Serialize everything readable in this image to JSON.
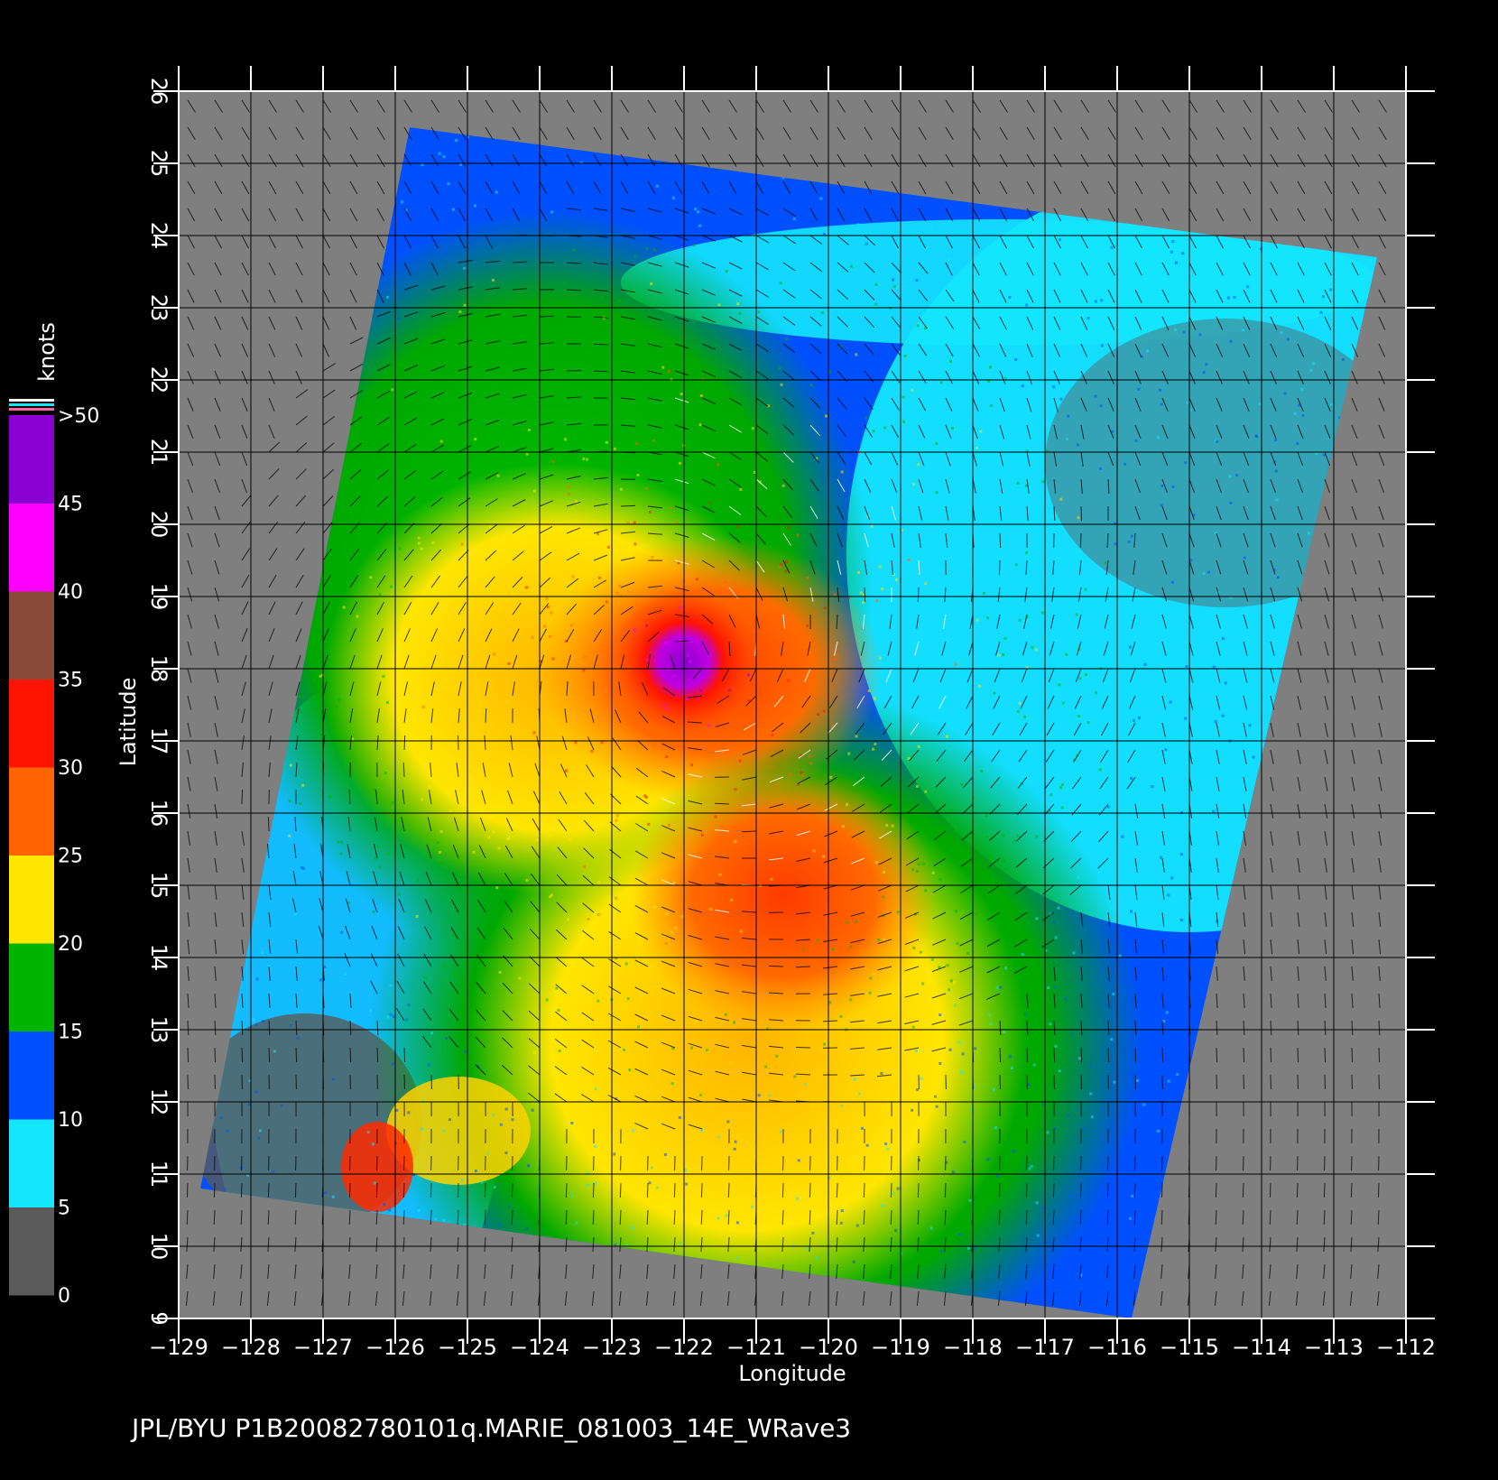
{
  "caption": "JPL/BYU  P1B20082780101q.MARIE_081003_14E_WRave3",
  "colors": {
    "background": "#000000",
    "land_or_nodata": "#7f7f7f",
    "grid": "#000000",
    "frame": "#ffffff"
  },
  "map": {
    "type": "satellite-swath-heatmap",
    "xlabel": "Longitude",
    "ylabel": "Latitude",
    "xlim": [
      -129,
      -112
    ],
    "ylim": [
      9,
      26
    ],
    "x_ticks": [
      "−129",
      "−128",
      "−127",
      "−126",
      "−125",
      "−124",
      "−123",
      "−122",
      "−121",
      "−120",
      "−119",
      "−118",
      "−117",
      "−116",
      "−115",
      "−114",
      "−113",
      "−112"
    ],
    "y_ticks": [
      "9",
      "10",
      "11",
      "12",
      "13",
      "14",
      "15",
      "16",
      "17",
      "18",
      "19",
      "20",
      "21",
      "22",
      "23",
      "24",
      "25",
      "26"
    ],
    "swath_corners_lonlat": [
      [
        -125.8,
        25.5
      ],
      [
        -112.4,
        23.7
      ],
      [
        -115.8,
        9.0
      ],
      [
        -128.7,
        10.8
      ]
    ],
    "storm_center_lonlat": [
      -122.0,
      18.1
    ],
    "grid": true
  },
  "legend": {
    "title": "knots",
    "placement": "left",
    "labels": [
      ">50",
      "45",
      "40",
      "35",
      "30",
      "25",
      "20",
      "15",
      "10",
      "5",
      "0"
    ],
    "bins": [
      {
        "from": 0,
        "to": 5,
        "color": "#5a5a5a"
      },
      {
        "from": 5,
        "to": 10,
        "color": "#14e6ff"
      },
      {
        "from": 10,
        "to": 15,
        "color": "#0050ff"
      },
      {
        "from": 15,
        "to": 20,
        "color": "#00b400"
      },
      {
        "from": 20,
        "to": 25,
        "color": "#ffe600"
      },
      {
        "from": 25,
        "to": 30,
        "color": "#ff6400"
      },
      {
        "from": 30,
        "to": 35,
        "color": "#ff1400"
      },
      {
        "from": 35,
        "to": 40,
        "color": "#8a4a3a"
      },
      {
        "from": 40,
        "to": 45,
        "color": "#ff00ff"
      },
      {
        "from": 45,
        "to": 50,
        "color": "#8a00d2"
      }
    ]
  }
}
